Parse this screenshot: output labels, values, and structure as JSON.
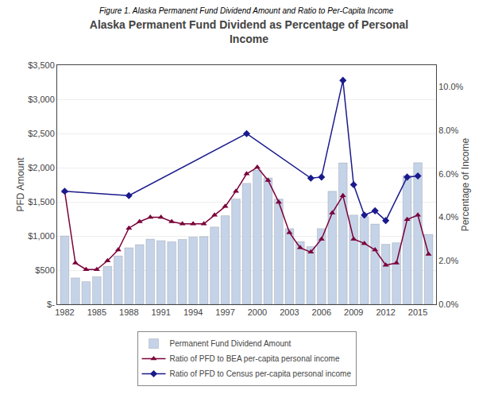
{
  "chart_data": {
    "type": "bar",
    "title": "Alaska Permanent Fund Dividend as Percentage of Personal\nIncome",
    "annotations": [
      "Figure 1. Alaska Permanent Fund Dividend Amount and Ratio to Per-Capita Income"
    ],
    "y_label": "PFD Amount",
    "y2_label": "Percentage of Income",
    "x": [
      1982,
      1983,
      1984,
      1985,
      1986,
      1987,
      1988,
      1989,
      1990,
      1991,
      1992,
      1993,
      1994,
      1995,
      1996,
      1997,
      1998,
      1999,
      2000,
      2001,
      2002,
      2003,
      2004,
      2005,
      2006,
      2007,
      2008,
      2009,
      2010,
      2011,
      2012,
      2013,
      2014,
      2015,
      2016
    ],
    "series": [
      {
        "name": "Permanent Fund Dividend Amount",
        "type": "bar",
        "color": "#c5d3e8",
        "axis": "y",
        "values": [
          1000,
          386,
          331,
          404,
          556,
          708,
          827,
          873,
          953,
          931,
          915,
          950,
          984,
          990,
          1131,
          1296,
          1541,
          1770,
          1964,
          1850,
          1540,
          1107,
          919,
          845,
          1107,
          1654,
          2069,
          1305,
          1281,
          1174,
          878,
          900,
          1884,
          2072,
          1022
        ]
      },
      {
        "name": "Ratio of PFD to BEA per-capita personal income",
        "type": "line",
        "color": "#7B003A",
        "marker": "triangle-up",
        "axis": "y2",
        "values": [
          5.2,
          1.9,
          1.6,
          1.6,
          2.0,
          2.5,
          3.5,
          3.8,
          4.0,
          4.0,
          3.8,
          3.7,
          3.7,
          3.7,
          4.1,
          4.5,
          5.2,
          6.0,
          6.3,
          5.7,
          4.7,
          3.3,
          2.6,
          2.4,
          3.0,
          4.2,
          5.0,
          3.0,
          2.8,
          2.5,
          1.8,
          1.9,
          3.9,
          4.1,
          2.3
        ]
      },
      {
        "name": "Ratio of PFD to Census per-capita personal income",
        "type": "line",
        "color": "#1a1a8c",
        "marker": "diamond",
        "axis": "y2",
        "x": [
          1982,
          1988,
          1999,
          2005,
          2006,
          2008,
          2009,
          2010,
          2011,
          2012,
          2014,
          2015
        ],
        "values": [
          5.2,
          5.0,
          7.85,
          5.8,
          5.85,
          10.3,
          5.5,
          4.1,
          4.3,
          3.85,
          5.85,
          5.9
        ]
      }
    ],
    "xlim": [
      1981.3,
      2016.7
    ],
    "xticks": [
      1982,
      1985,
      1988,
      1991,
      1994,
      1997,
      2000,
      2003,
      2006,
      2009,
      2012,
      2015
    ],
    "ylim": [
      0,
      3500
    ],
    "yticks": [
      {
        "value": 0,
        "label": "$-"
      },
      {
        "value": 500,
        "label": "$500"
      },
      {
        "value": 1000,
        "label": "$1,000"
      },
      {
        "value": 1500,
        "label": "$1,500"
      },
      {
        "value": 2000,
        "label": "$2,000"
      },
      {
        "value": 2500,
        "label": "$2,500"
      },
      {
        "value": 3000,
        "label": "$3,000"
      },
      {
        "value": 3500,
        "label": "$3,500"
      }
    ],
    "y2lim": [
      0,
      11
    ],
    "y2ticks": [
      {
        "value": 0,
        "label": "0.0%"
      },
      {
        "value": 2,
        "label": "2.0%"
      },
      {
        "value": 4,
        "label": "4.0%"
      },
      {
        "value": 6,
        "label": "6.0%"
      },
      {
        "value": 8,
        "label": "8.0%"
      },
      {
        "value": 10,
        "label": "10.0%"
      }
    ],
    "grid": true,
    "legend": "bottom"
  }
}
